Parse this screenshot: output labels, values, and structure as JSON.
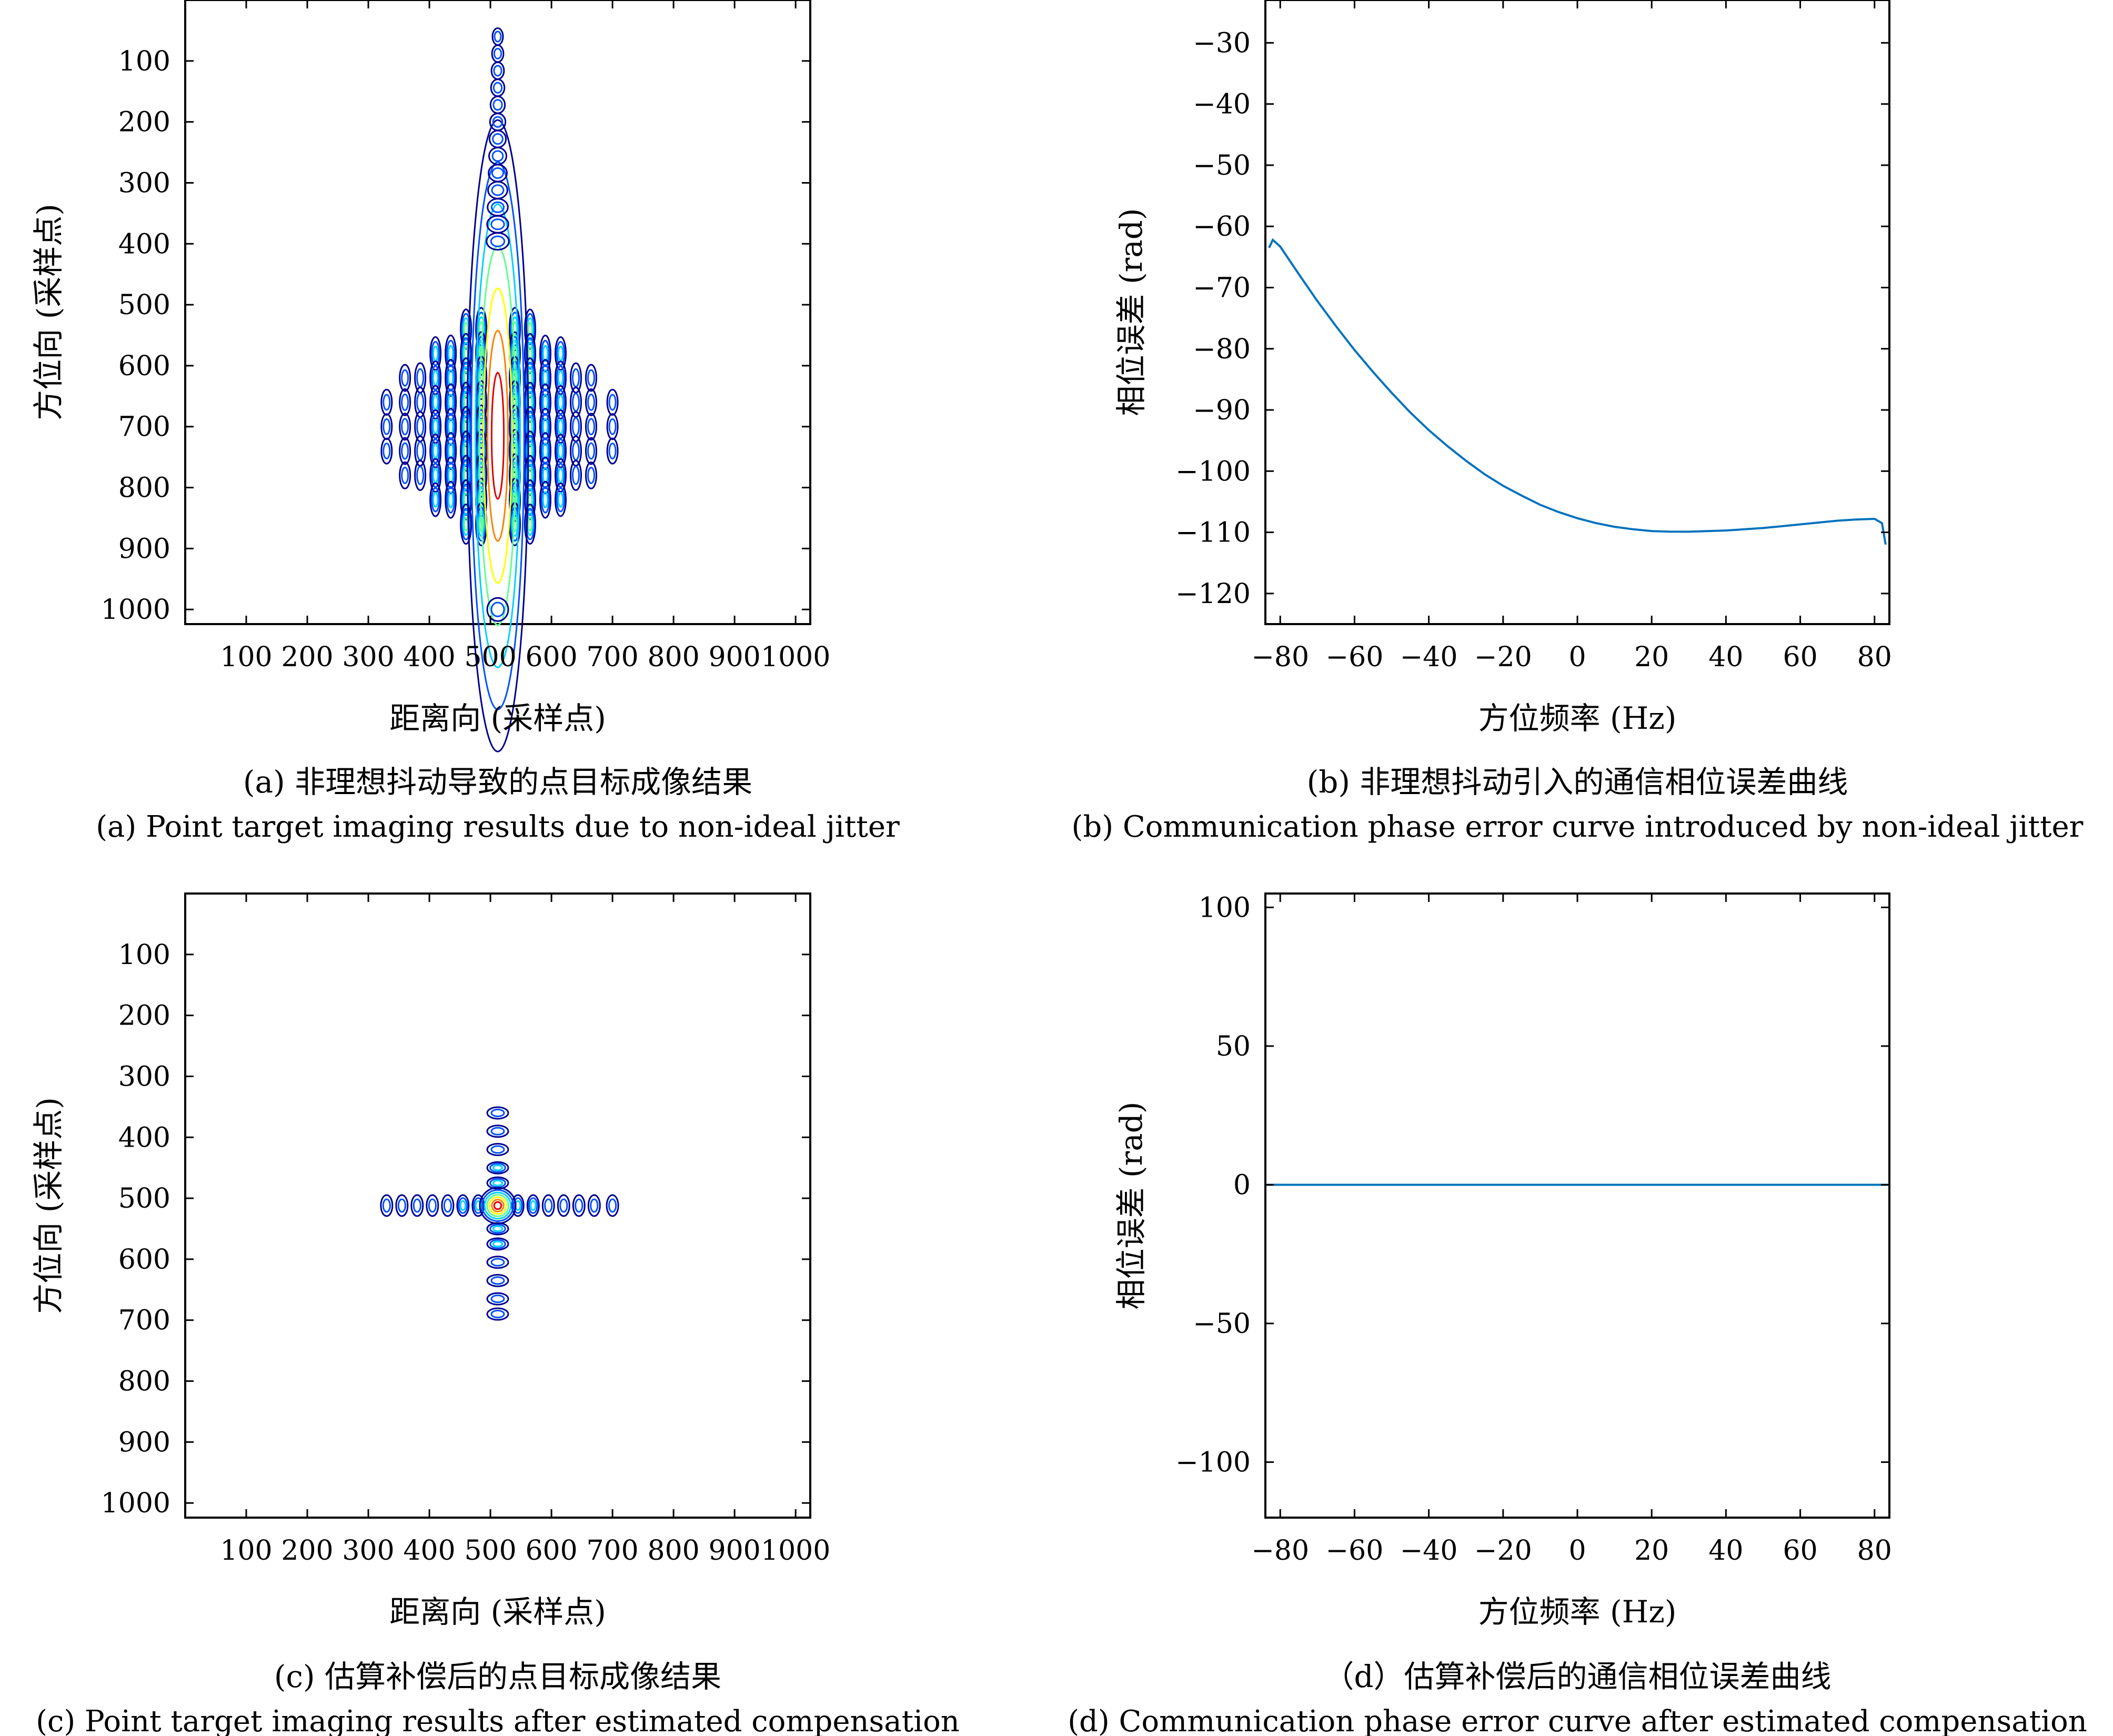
{
  "panels": {
    "a": {
      "caption_cn": "(a) 非理想抖动导致的点目标成像结果",
      "caption_en": "(a) Point target imaging results due to non-ideal jitter",
      "xlabel": "距离向 (采样点)",
      "ylabel": "方位向 (采样点)"
    },
    "b": {
      "caption_cn": "(b) 非理想抖动引入的通信相位误差曲线",
      "caption_en": "(b) Communication phase error curve introduced by non-ideal jitter",
      "xlabel": "方位频率 (Hz)",
      "ylabel": "相位误差 (rad)"
    },
    "c": {
      "caption_cn": "(c) 估算补偿后的点目标成像结果",
      "caption_en": "(c) Point target imaging results after estimated compensation",
      "xlabel": "距离向 (采样点)",
      "ylabel": "方位向 (采样点)"
    },
    "d": {
      "caption_cn": "（d）估算补偿后的通信相位误差曲线",
      "caption_en": "(d) Communication phase error curve after estimated compensation",
      "xlabel": "方位频率 (Hz)",
      "ylabel": "相位误差 (rad)"
    }
  },
  "chart_data": [
    {
      "panel": "a",
      "type": "heatmap",
      "description_kind": "contour",
      "xlim": [
        0,
        1024
      ],
      "ylim": [
        0,
        1024
      ],
      "y_inverted": true,
      "xticks": [
        100,
        200,
        300,
        400,
        500,
        600,
        700,
        800,
        900,
        1000
      ],
      "xtick_labels": [
        "100",
        "200",
        "300",
        "400",
        "500",
        "600",
        "700",
        "800",
        "900",
        "1000"
      ],
      "yticks": [
        100,
        200,
        300,
        400,
        500,
        600,
        700,
        800,
        900,
        1000
      ],
      "ytick_labels": [
        "100",
        "200",
        "300",
        "400",
        "500",
        "600",
        "700",
        "800",
        "900",
        "1000"
      ],
      "target_center": [
        512,
        512
      ],
      "range_lobes": [
        330,
        360,
        385,
        410,
        435,
        460,
        485,
        540,
        565,
        590,
        615,
        640,
        665,
        700
      ],
      "azimuth_rows": [
        540,
        580,
        620,
        660,
        700,
        740,
        780,
        820,
        860
      ],
      "colors": [
        "#00008f",
        "#0050ff",
        "#00d0ff",
        "#60ff90",
        "#ffff00",
        "#ff8000",
        "#e00000"
      ]
    },
    {
      "panel": "b",
      "type": "line",
      "xlim": [
        -84,
        84
      ],
      "ylim": [
        -125,
        -23
      ],
      "xticks": [
        -80,
        -60,
        -40,
        -20,
        0,
        20,
        40,
        60,
        80
      ],
      "xtick_labels": [
        "−80",
        "−60",
        "−40",
        "−20",
        "0",
        "20",
        "40",
        "60",
        "80"
      ],
      "yticks": [
        -30,
        -40,
        -50,
        -60,
        -70,
        -80,
        -90,
        -100,
        -110,
        -120
      ],
      "ytick_labels": [
        "−30",
        "−40",
        "−50",
        "−60",
        "−70",
        "−80",
        "−90",
        "−100",
        "−110",
        "−120"
      ],
      "color": "#0072bd",
      "x": [
        -83,
        -82,
        -80,
        -75,
        -70,
        -65,
        -60,
        -55,
        -50,
        -45,
        -40,
        -35,
        -30,
        -25,
        -20,
        -15,
        -10,
        -5,
        0,
        5,
        10,
        15,
        20,
        25,
        30,
        35,
        40,
        45,
        50,
        55,
        60,
        65,
        70,
        75,
        80,
        82,
        83
      ],
      "y": [
        -63.5,
        -62.2,
        -63.3,
        -67.8,
        -72.2,
        -76.3,
        -80.2,
        -83.8,
        -87.2,
        -90.4,
        -93.3,
        -95.9,
        -98.3,
        -100.5,
        -102.4,
        -104.0,
        -105.5,
        -106.7,
        -107.7,
        -108.5,
        -109.1,
        -109.5,
        -109.8,
        -109.9,
        -109.9,
        -109.8,
        -109.7,
        -109.5,
        -109.3,
        -109.0,
        -108.7,
        -108.4,
        -108.1,
        -107.9,
        -107.8,
        -108.5,
        -112.0
      ]
    },
    {
      "panel": "c",
      "type": "heatmap",
      "description_kind": "contour",
      "xlim": [
        0,
        1024
      ],
      "ylim": [
        0,
        1024
      ],
      "y_inverted": true,
      "xticks": [
        100,
        200,
        300,
        400,
        500,
        600,
        700,
        800,
        900,
        1000
      ],
      "xtick_labels": [
        "100",
        "200",
        "300",
        "400",
        "500",
        "600",
        "700",
        "800",
        "900",
        "1000"
      ],
      "yticks": [
        100,
        200,
        300,
        400,
        500,
        600,
        700,
        800,
        900,
        1000
      ],
      "ytick_labels": [
        "100",
        "200",
        "300",
        "400",
        "500",
        "600",
        "700",
        "800",
        "900",
        "1000"
      ],
      "target_center": [
        512,
        512
      ],
      "range_lobes": [
        330,
        355,
        380,
        405,
        430,
        455,
        480,
        545,
        570,
        595,
        620,
        645,
        670,
        700
      ],
      "azimuth_lobes": [
        360,
        390,
        420,
        450,
        475,
        550,
        575,
        605,
        635,
        665,
        690
      ],
      "colors": [
        "#00008f",
        "#0050ff",
        "#00d0ff",
        "#60ff90",
        "#ffff00",
        "#ff8000",
        "#e00000"
      ]
    },
    {
      "panel": "d",
      "type": "line",
      "xlim": [
        -84,
        84
      ],
      "ylim": [
        -120,
        105
      ],
      "xticks": [
        -80,
        -60,
        -40,
        -20,
        0,
        20,
        40,
        60,
        80
      ],
      "xtick_labels": [
        "−80",
        "−60",
        "−40",
        "−20",
        "0",
        "20",
        "40",
        "60",
        "80"
      ],
      "yticks": [
        100,
        50,
        0,
        -50,
        -100
      ],
      "ytick_labels": [
        "100",
        "50",
        "0",
        "−50",
        "−100"
      ],
      "color": "#0072bd",
      "x": [
        -84,
        -60,
        -40,
        -20,
        0,
        20,
        40,
        60,
        84
      ],
      "y": [
        0,
        0,
        0,
        0,
        0,
        0,
        0,
        0,
        0
      ]
    }
  ]
}
